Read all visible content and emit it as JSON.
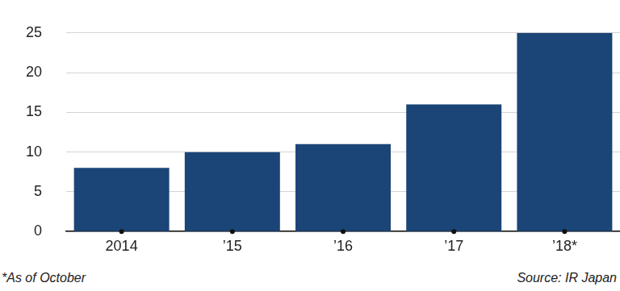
{
  "chart_data": {
    "type": "bar",
    "categories": [
      "2014",
      "’15",
      "’16",
      "’17",
      "’18*"
    ],
    "values": [
      8,
      10,
      11,
      16,
      25
    ],
    "color": "#1b4577",
    "ylim": [
      0,
      25
    ],
    "yticks": [
      0,
      5,
      10,
      15,
      20,
      25
    ],
    "grid": true,
    "footnote": "*As of October",
    "source": "Source: IR Japan"
  }
}
